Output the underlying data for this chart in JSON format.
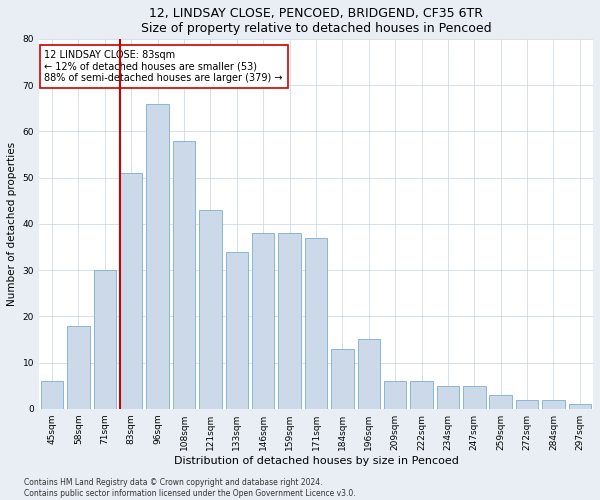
{
  "title": "12, LINDSAY CLOSE, PENCOED, BRIDGEND, CF35 6TR",
  "subtitle": "Size of property relative to detached houses in Pencoed",
  "xlabel": "Distribution of detached houses by size in Pencoed",
  "ylabel": "Number of detached properties",
  "categories": [
    "45sqm",
    "58sqm",
    "71sqm",
    "83sqm",
    "96sqm",
    "108sqm",
    "121sqm",
    "133sqm",
    "146sqm",
    "159sqm",
    "171sqm",
    "184sqm",
    "196sqm",
    "209sqm",
    "222sqm",
    "234sqm",
    "247sqm",
    "259sqm",
    "272sqm",
    "284sqm",
    "297sqm"
  ],
  "values": [
    6,
    18,
    30,
    51,
    66,
    58,
    43,
    34,
    38,
    38,
    37,
    13,
    15,
    6,
    6,
    5,
    5,
    3,
    2,
    2,
    1
  ],
  "bar_color": "#ccd9e8",
  "bar_edge_color": "#7aafd4",
  "highlight_index": 3,
  "highlight_color": "#cc0000",
  "ylim": [
    0,
    80
  ],
  "yticks": [
    0,
    10,
    20,
    30,
    40,
    50,
    60,
    70,
    80
  ],
  "annotation_text": "12 LINDSAY CLOSE: 83sqm\n← 12% of detached houses are smaller (53)\n88% of semi-detached houses are larger (379) →",
  "annotation_box_color": "#ffffff",
  "annotation_box_edge": "#cc0000",
  "footer_line1": "Contains HM Land Registry data © Crown copyright and database right 2024.",
  "footer_line2": "Contains public sector information licensed under the Open Government Licence v3.0.",
  "background_color": "#e8eef4",
  "plot_bg_color": "#ffffff",
  "title_fontsize": 9,
  "subtitle_fontsize": 8.5,
  "tick_fontsize": 6.5,
  "ylabel_fontsize": 7.5,
  "xlabel_fontsize": 8,
  "annotation_fontsize": 7,
  "footer_fontsize": 5.5
}
